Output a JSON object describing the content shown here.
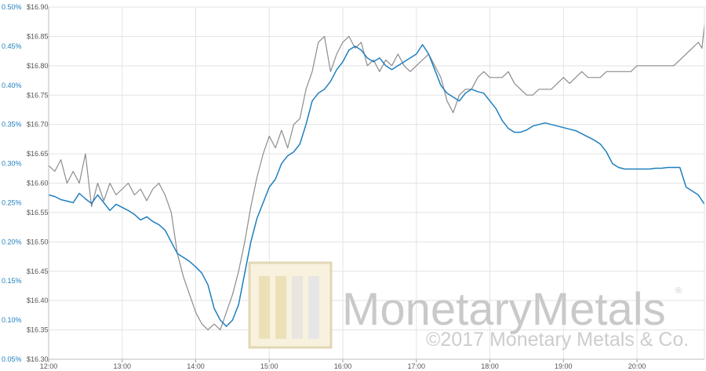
{
  "chart_data": {
    "type": "line",
    "title": "",
    "xlabel": "",
    "ylabel": "",
    "grid": true,
    "x_ticks": [
      "12:00",
      "13:00",
      "14:00",
      "15:00",
      "16:00",
      "17:00",
      "18:00",
      "19:00",
      "20:00"
    ],
    "left_axis": {
      "ticks": [
        "0.05%",
        "0.10%",
        "0.15%",
        "0.20%",
        "0.25%",
        "0.30%",
        "0.35%",
        "0.40%",
        "0.45%",
        "0.50%"
      ],
      "ylim": [
        0.05,
        0.5
      ],
      "color": "#1f7fbf"
    },
    "price_axis": {
      "ticks": [
        "$16.30",
        "$16.35",
        "$16.40",
        "$16.45",
        "$16.50",
        "$16.55",
        "$16.60",
        "$16.65",
        "$16.70",
        "$16.75",
        "$16.80",
        "$16.85",
        "$16.90"
      ],
      "ylim": [
        16.3,
        16.9
      ],
      "color": "#555555"
    },
    "xlim": [
      "12:00",
      "20:55"
    ],
    "series": [
      {
        "axis": "price",
        "color": "#8c8c8c",
        "points": [
          [
            "12:00",
            16.63
          ],
          [
            "12:05",
            16.62
          ],
          [
            "12:10",
            16.64
          ],
          [
            "12:15",
            16.6
          ],
          [
            "12:20",
            16.62
          ],
          [
            "12:25",
            16.6
          ],
          [
            "12:30",
            16.65
          ],
          [
            "12:35",
            16.56
          ],
          [
            "12:40",
            16.6
          ],
          [
            "12:45",
            16.57
          ],
          [
            "12:50",
            16.6
          ],
          [
            "12:55",
            16.58
          ],
          [
            "13:00",
            16.59
          ],
          [
            "13:05",
            16.6
          ],
          [
            "13:10",
            16.58
          ],
          [
            "13:15",
            16.59
          ],
          [
            "13:20",
            16.57
          ],
          [
            "13:25",
            16.59
          ],
          [
            "13:30",
            16.6
          ],
          [
            "13:35",
            16.58
          ],
          [
            "13:40",
            16.55
          ],
          [
            "13:45",
            16.48
          ],
          [
            "13:50",
            16.44
          ],
          [
            "13:55",
            16.41
          ],
          [
            "14:00",
            16.38
          ],
          [
            "14:05",
            16.36
          ],
          [
            "14:10",
            16.35
          ],
          [
            "14:15",
            16.36
          ],
          [
            "14:20",
            16.35
          ],
          [
            "14:25",
            16.38
          ],
          [
            "14:30",
            16.41
          ],
          [
            "14:35",
            16.45
          ],
          [
            "14:40",
            16.5
          ],
          [
            "14:45",
            16.56
          ],
          [
            "14:50",
            16.61
          ],
          [
            "14:55",
            16.65
          ],
          [
            "15:00",
            16.68
          ],
          [
            "15:05",
            16.66
          ],
          [
            "15:10",
            16.69
          ],
          [
            "15:15",
            16.66
          ],
          [
            "15:20",
            16.7
          ],
          [
            "15:25",
            16.71
          ],
          [
            "15:30",
            16.76
          ],
          [
            "15:35",
            16.79
          ],
          [
            "15:40",
            16.84
          ],
          [
            "15:45",
            16.85
          ],
          [
            "15:50",
            16.79
          ],
          [
            "15:55",
            16.82
          ],
          [
            "16:00",
            16.84
          ],
          [
            "16:05",
            16.85
          ],
          [
            "16:10",
            16.83
          ],
          [
            "16:15",
            16.84
          ],
          [
            "16:20",
            16.8
          ],
          [
            "16:25",
            16.81
          ],
          [
            "16:30",
            16.79
          ],
          [
            "16:35",
            16.81
          ],
          [
            "16:40",
            16.8
          ],
          [
            "16:45",
            16.82
          ],
          [
            "16:50",
            16.8
          ],
          [
            "16:55",
            16.79
          ],
          [
            "17:00",
            16.8
          ],
          [
            "17:05",
            16.81
          ],
          [
            "17:10",
            16.82
          ],
          [
            "17:15",
            16.8
          ],
          [
            "17:20",
            16.78
          ],
          [
            "17:25",
            16.74
          ],
          [
            "17:30",
            16.72
          ],
          [
            "17:35",
            16.75
          ],
          [
            "17:40",
            16.76
          ],
          [
            "17:45",
            16.76
          ],
          [
            "17:50",
            16.78
          ],
          [
            "17:55",
            16.79
          ],
          [
            "18:00",
            16.78
          ],
          [
            "18:05",
            16.78
          ],
          [
            "18:10",
            16.78
          ],
          [
            "18:15",
            16.79
          ],
          [
            "18:20",
            16.77
          ],
          [
            "18:25",
            16.76
          ],
          [
            "18:30",
            16.75
          ],
          [
            "18:35",
            16.75
          ],
          [
            "18:40",
            16.76
          ],
          [
            "18:45",
            16.76
          ],
          [
            "18:50",
            16.76
          ],
          [
            "18:55",
            16.77
          ],
          [
            "19:00",
            16.78
          ],
          [
            "19:05",
            16.77
          ],
          [
            "19:10",
            16.78
          ],
          [
            "19:15",
            16.79
          ],
          [
            "19:20",
            16.78
          ],
          [
            "19:25",
            16.78
          ],
          [
            "19:30",
            16.78
          ],
          [
            "19:35",
            16.79
          ],
          [
            "19:40",
            16.79
          ],
          [
            "19:45",
            16.79
          ],
          [
            "19:50",
            16.79
          ],
          [
            "19:55",
            16.79
          ],
          [
            "20:00",
            16.8
          ],
          [
            "20:05",
            16.8
          ],
          [
            "20:10",
            16.8
          ],
          [
            "20:15",
            16.8
          ],
          [
            "20:20",
            16.8
          ],
          [
            "20:25",
            16.8
          ],
          [
            "20:30",
            16.8
          ],
          [
            "20:35",
            16.81
          ],
          [
            "20:40",
            16.82
          ],
          [
            "20:45",
            16.83
          ],
          [
            "20:50",
            16.84
          ],
          [
            "20:53",
            16.83
          ],
          [
            "20:55",
            16.87
          ]
        ]
      },
      {
        "axis": "left",
        "color": "#1f7fbf",
        "points": [
          [
            "12:00",
            0.26
          ],
          [
            "12:05",
            0.258
          ],
          [
            "12:10",
            0.254
          ],
          [
            "12:15",
            0.252
          ],
          [
            "12:20",
            0.25
          ],
          [
            "12:25",
            0.262
          ],
          [
            "12:30",
            0.255
          ],
          [
            "12:35",
            0.249
          ],
          [
            "12:40",
            0.26
          ],
          [
            "12:45",
            0.25
          ],
          [
            "12:50",
            0.24
          ],
          [
            "12:55",
            0.248
          ],
          [
            "13:00",
            0.244
          ],
          [
            "13:05",
            0.24
          ],
          [
            "13:10",
            0.235
          ],
          [
            "13:15",
            0.228
          ],
          [
            "13:20",
            0.232
          ],
          [
            "13:25",
            0.226
          ],
          [
            "13:30",
            0.222
          ],
          [
            "13:35",
            0.215
          ],
          [
            "13:40",
            0.2
          ],
          [
            "13:45",
            0.185
          ],
          [
            "13:50",
            0.18
          ],
          [
            "13:55",
            0.175
          ],
          [
            "14:00",
            0.168
          ],
          [
            "14:05",
            0.16
          ],
          [
            "14:10",
            0.145
          ],
          [
            "14:15",
            0.115
          ],
          [
            "14:20",
            0.1
          ],
          [
            "14:25",
            0.092
          ],
          [
            "14:30",
            0.1
          ],
          [
            "14:35",
            0.12
          ],
          [
            "14:40",
            0.16
          ],
          [
            "14:45",
            0.2
          ],
          [
            "14:50",
            0.23
          ],
          [
            "14:55",
            0.25
          ],
          [
            "15:00",
            0.27
          ],
          [
            "15:05",
            0.28
          ],
          [
            "15:10",
            0.3
          ],
          [
            "15:15",
            0.31
          ],
          [
            "15:20",
            0.315
          ],
          [
            "15:25",
            0.325
          ],
          [
            "15:30",
            0.35
          ],
          [
            "15:35",
            0.38
          ],
          [
            "15:40",
            0.39
          ],
          [
            "15:45",
            0.395
          ],
          [
            "15:50",
            0.405
          ],
          [
            "15:55",
            0.42
          ],
          [
            "16:00",
            0.43
          ],
          [
            "16:05",
            0.445
          ],
          [
            "16:10",
            0.45
          ],
          [
            "16:15",
            0.445
          ],
          [
            "16:20",
            0.435
          ],
          [
            "16:25",
            0.43
          ],
          [
            "16:30",
            0.435
          ],
          [
            "16:35",
            0.425
          ],
          [
            "16:40",
            0.42
          ],
          [
            "16:45",
            0.425
          ],
          [
            "16:50",
            0.43
          ],
          [
            "16:55",
            0.435
          ],
          [
            "17:00",
            0.44
          ],
          [
            "17:05",
            0.452
          ],
          [
            "17:10",
            0.44
          ],
          [
            "17:15",
            0.42
          ],
          [
            "17:20",
            0.4
          ],
          [
            "17:25",
            0.39
          ],
          [
            "17:30",
            0.385
          ],
          [
            "17:35",
            0.38
          ],
          [
            "17:40",
            0.39
          ],
          [
            "17:45",
            0.395
          ],
          [
            "17:50",
            0.392
          ],
          [
            "17:55",
            0.39
          ],
          [
            "18:00",
            0.38
          ],
          [
            "18:05",
            0.37
          ],
          [
            "18:10",
            0.355
          ],
          [
            "18:15",
            0.345
          ],
          [
            "18:20",
            0.34
          ],
          [
            "18:25",
            0.34
          ],
          [
            "18:30",
            0.343
          ],
          [
            "18:35",
            0.348
          ],
          [
            "18:40",
            0.35
          ],
          [
            "18:45",
            0.352
          ],
          [
            "18:50",
            0.35
          ],
          [
            "18:55",
            0.348
          ],
          [
            "19:00",
            0.346
          ],
          [
            "19:05",
            0.344
          ],
          [
            "19:10",
            0.342
          ],
          [
            "19:15",
            0.338
          ],
          [
            "19:20",
            0.334
          ],
          [
            "19:25",
            0.33
          ],
          [
            "19:30",
            0.325
          ],
          [
            "19:35",
            0.315
          ],
          [
            "19:40",
            0.3
          ],
          [
            "19:45",
            0.295
          ],
          [
            "19:50",
            0.293
          ],
          [
            "19:55",
            0.293
          ],
          [
            "20:00",
            0.293
          ],
          [
            "20:05",
            0.293
          ],
          [
            "20:10",
            0.293
          ],
          [
            "20:15",
            0.294
          ],
          [
            "20:20",
            0.294
          ],
          [
            "20:25",
            0.295
          ],
          [
            "20:30",
            0.295
          ],
          [
            "20:35",
            0.295
          ],
          [
            "20:40",
            0.27
          ],
          [
            "20:45",
            0.265
          ],
          [
            "20:50",
            0.26
          ],
          [
            "20:55",
            0.248
          ]
        ]
      }
    ]
  },
  "watermark": {
    "brand": "MonetaryMetals",
    "registered": "®",
    "copyright": "©2017 Monetary Metals & Co."
  }
}
